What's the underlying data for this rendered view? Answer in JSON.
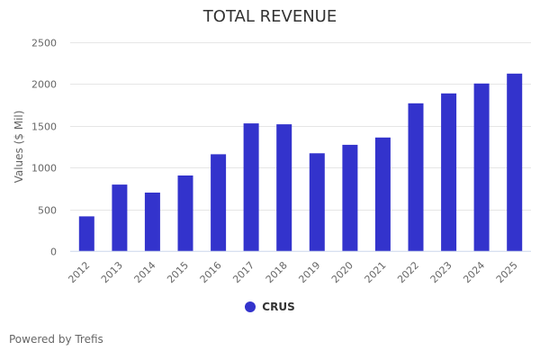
{
  "chart_data": {
    "type": "bar",
    "title": "TOTAL REVENUE",
    "xlabel": "",
    "ylabel": "Values ($ Mil)",
    "ylim": [
      0,
      2500
    ],
    "yticks": [
      0,
      500,
      1000,
      1500,
      2000,
      2500
    ],
    "grid": true,
    "legend_position": "bottom-center",
    "categories": [
      "2012",
      "2013",
      "2014",
      "2015",
      "2016",
      "2017",
      "2018",
      "2019",
      "2020",
      "2021",
      "2022",
      "2023",
      "2024",
      "2025"
    ],
    "series": [
      {
        "name": "CRUS",
        "color": "#3333cc",
        "values": [
          418,
          797,
          701,
          905,
          1159,
          1527,
          1516,
          1170,
          1272,
          1358,
          1767,
          1885,
          2003,
          2121
        ]
      }
    ]
  },
  "credits": "Powered by Trefis"
}
